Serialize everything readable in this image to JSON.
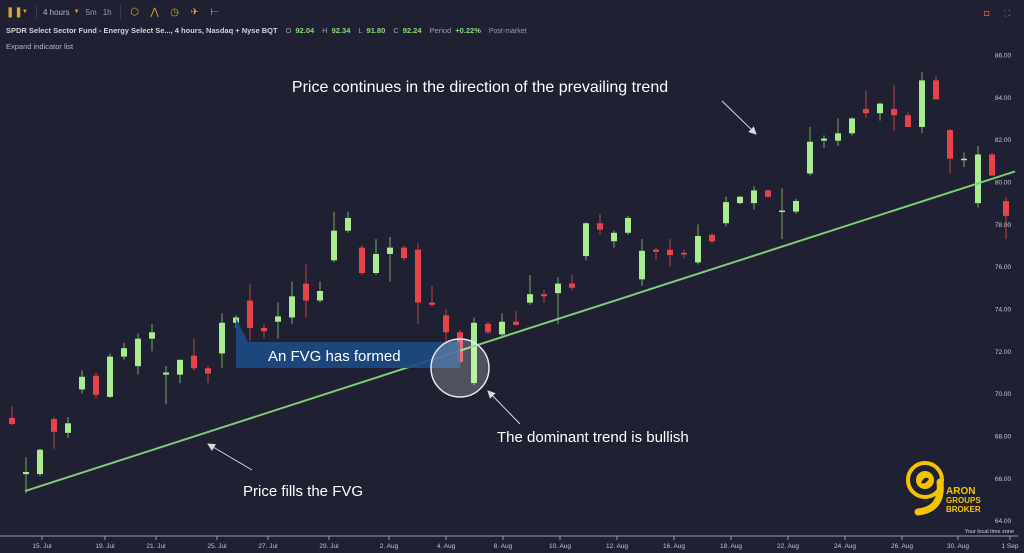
{
  "toolbar": {
    "interval": "4 hours",
    "quick_intervals": [
      "5m",
      "1h"
    ],
    "icons": [
      "candles-icon",
      "indicators-icon",
      "compare-icon",
      "replay-clock-icon",
      "drawing-icon",
      "measure-icon"
    ],
    "right_icons": [
      "camera-icon",
      "fullscreen-icon"
    ]
  },
  "symbol_info": {
    "title": "SPDR Select Sector Fund - Energy Select Se..., 4 hours, Nasdaq + Nyse BQT",
    "open_label": "O",
    "open": "92.04",
    "high_label": "H",
    "high": "92.34",
    "low_label": "L",
    "low": "91.80",
    "close_label": "C",
    "close": "92.24",
    "period_label": "Period",
    "period": "+0.22%",
    "session": "Post-market"
  },
  "expand_indicator_list": "Expand indicator list",
  "timezone_label": "Your local time zone",
  "colors": {
    "background": "#1f2031",
    "up": "#a9ec8f",
    "down": "#e8434b",
    "trendline": "#7fcb77",
    "annotation_box": "#1c4a82",
    "logo": "#f5c400"
  },
  "annotations": {
    "top": "Price continues in the direction of the prevailing trend",
    "fvg": "An FVG has formed",
    "dominant": "The dominant trend is bullish",
    "fills": "Price fills the FVG"
  },
  "logo": {
    "text_line1": "ARON",
    "text_line2": "GROUPS",
    "text_line3": "BROKER"
  },
  "chart_data": {
    "type": "candlestick",
    "interval": "4 hours",
    "y_ticks": [
      "86.00",
      "84.00",
      "82.00",
      "80.00",
      "78.00",
      "76.00",
      "74.00",
      "72.00",
      "70.00",
      "68.00",
      "66.00",
      "64.00"
    ],
    "ylim": [
      64,
      86
    ],
    "x_ticks": [
      "15. Jul",
      "19. Jul",
      "21. Jul",
      "25. Jul",
      "27. Jul",
      "29. Jul",
      "2. Aug",
      "4. Aug",
      "8. Aug",
      "10. Aug",
      "12. Aug",
      "16. Aug",
      "18. Aug",
      "22. Aug",
      "24. Aug",
      "26. Aug",
      "30. Aug",
      "1 Sep"
    ],
    "grid": false,
    "ohlc": [
      [
        68.85,
        69.4,
        68.5,
        68.57
      ],
      [
        66.2,
        67.0,
        65.3,
        66.3
      ],
      [
        66.2,
        67.4,
        66.1,
        67.35
      ],
      [
        68.8,
        68.9,
        67.4,
        68.2
      ],
      [
        68.15,
        68.9,
        67.9,
        68.6
      ],
      [
        70.2,
        71.1,
        70.0,
        70.8
      ],
      [
        70.85,
        71.0,
        69.8,
        69.95
      ],
      [
        69.85,
        71.9,
        69.8,
        71.75
      ],
      [
        71.75,
        72.4,
        71.6,
        72.15
      ],
      [
        71.3,
        72.85,
        70.9,
        72.6
      ],
      [
        72.6,
        73.3,
        72.0,
        72.9
      ],
      [
        70.9,
        71.3,
        69.5,
        71.0
      ],
      [
        70.9,
        71.6,
        70.5,
        71.6
      ],
      [
        71.8,
        72.6,
        71.1,
        71.2
      ],
      [
        71.2,
        71.3,
        70.5,
        70.95
      ],
      [
        71.9,
        73.8,
        71.2,
        73.35
      ],
      [
        73.35,
        73.7,
        73.1,
        73.6
      ],
      [
        74.4,
        75.2,
        72.5,
        73.1
      ],
      [
        73.1,
        73.3,
        72.6,
        72.95
      ],
      [
        73.4,
        74.3,
        72.6,
        73.65
      ],
      [
        73.6,
        75.3,
        73.3,
        74.6
      ],
      [
        75.2,
        76.1,
        73.6,
        74.4
      ],
      [
        74.4,
        75.3,
        74.3,
        74.85
      ],
      [
        76.3,
        78.6,
        76.2,
        77.7
      ],
      [
        77.7,
        78.6,
        77.6,
        78.3
      ],
      [
        76.9,
        77.0,
        75.6,
        75.7
      ],
      [
        75.7,
        77.3,
        75.6,
        76.6
      ],
      [
        76.6,
        77.4,
        75.3,
        76.9
      ],
      [
        76.9,
        77.0,
        76.3,
        76.4
      ],
      [
        76.8,
        77.1,
        73.3,
        74.3
      ],
      [
        74.3,
        75.1,
        74.1,
        74.2
      ],
      [
        73.7,
        74.0,
        72.4,
        72.9
      ],
      [
        72.9,
        73.0,
        71.4,
        71.5
      ],
      [
        70.5,
        73.6,
        70.4,
        73.35
      ],
      [
        73.3,
        73.4,
        72.8,
        72.9
      ],
      [
        72.8,
        73.8,
        72.7,
        73.4
      ],
      [
        73.4,
        73.9,
        73.2,
        73.25
      ],
      [
        74.3,
        75.6,
        74.2,
        74.7
      ],
      [
        74.7,
        74.9,
        74.3,
        74.6
      ],
      [
        74.75,
        75.5,
        73.3,
        75.2
      ],
      [
        75.2,
        75.6,
        74.9,
        75.0
      ],
      [
        76.5,
        78.1,
        76.3,
        78.05
      ],
      [
        78.05,
        78.5,
        77.5,
        77.75
      ],
      [
        77.2,
        77.7,
        76.9,
        77.6
      ],
      [
        77.6,
        78.4,
        77.5,
        78.3
      ],
      [
        75.4,
        77.3,
        75.1,
        76.75
      ],
      [
        76.8,
        76.9,
        76.3,
        76.7
      ],
      [
        76.8,
        77.3,
        76.0,
        76.55
      ],
      [
        76.65,
        76.8,
        76.4,
        76.6
      ],
      [
        76.2,
        78.0,
        76.1,
        77.45
      ],
      [
        77.5,
        77.6,
        77.1,
        77.2
      ],
      [
        78.05,
        79.3,
        77.9,
        79.05
      ],
      [
        79.0,
        79.35,
        78.95,
        79.3
      ],
      [
        79.0,
        79.8,
        78.7,
        79.6
      ],
      [
        79.6,
        79.65,
        79.25,
        79.3
      ],
      [
        78.6,
        79.7,
        77.3,
        78.65
      ],
      [
        78.6,
        79.2,
        78.5,
        79.1
      ],
      [
        80.4,
        82.6,
        80.3,
        81.9
      ],
      [
        81.95,
        82.2,
        81.6,
        82.05
      ],
      [
        81.95,
        83.0,
        81.7,
        82.3
      ],
      [
        82.3,
        83.05,
        82.2,
        83.0
      ],
      [
        83.45,
        84.3,
        83.0,
        83.25
      ],
      [
        83.25,
        83.75,
        82.9,
        83.7
      ],
      [
        83.45,
        84.6,
        82.4,
        83.15
      ],
      [
        83.15,
        83.3,
        82.6,
        82.6
      ],
      [
        82.6,
        85.2,
        82.3,
        84.8
      ],
      [
        84.8,
        85.0,
        83.9,
        83.9
      ],
      [
        82.45,
        82.5,
        80.4,
        81.1
      ],
      [
        81.05,
        81.4,
        80.7,
        81.1
      ],
      [
        79.0,
        81.7,
        78.8,
        81.3
      ],
      [
        81.3,
        81.4,
        80.3,
        80.3
      ],
      [
        79.1,
        79.3,
        77.3,
        78.4
      ]
    ],
    "trendline": {
      "start_price": 65.4,
      "end_price": 80.5
    }
  }
}
